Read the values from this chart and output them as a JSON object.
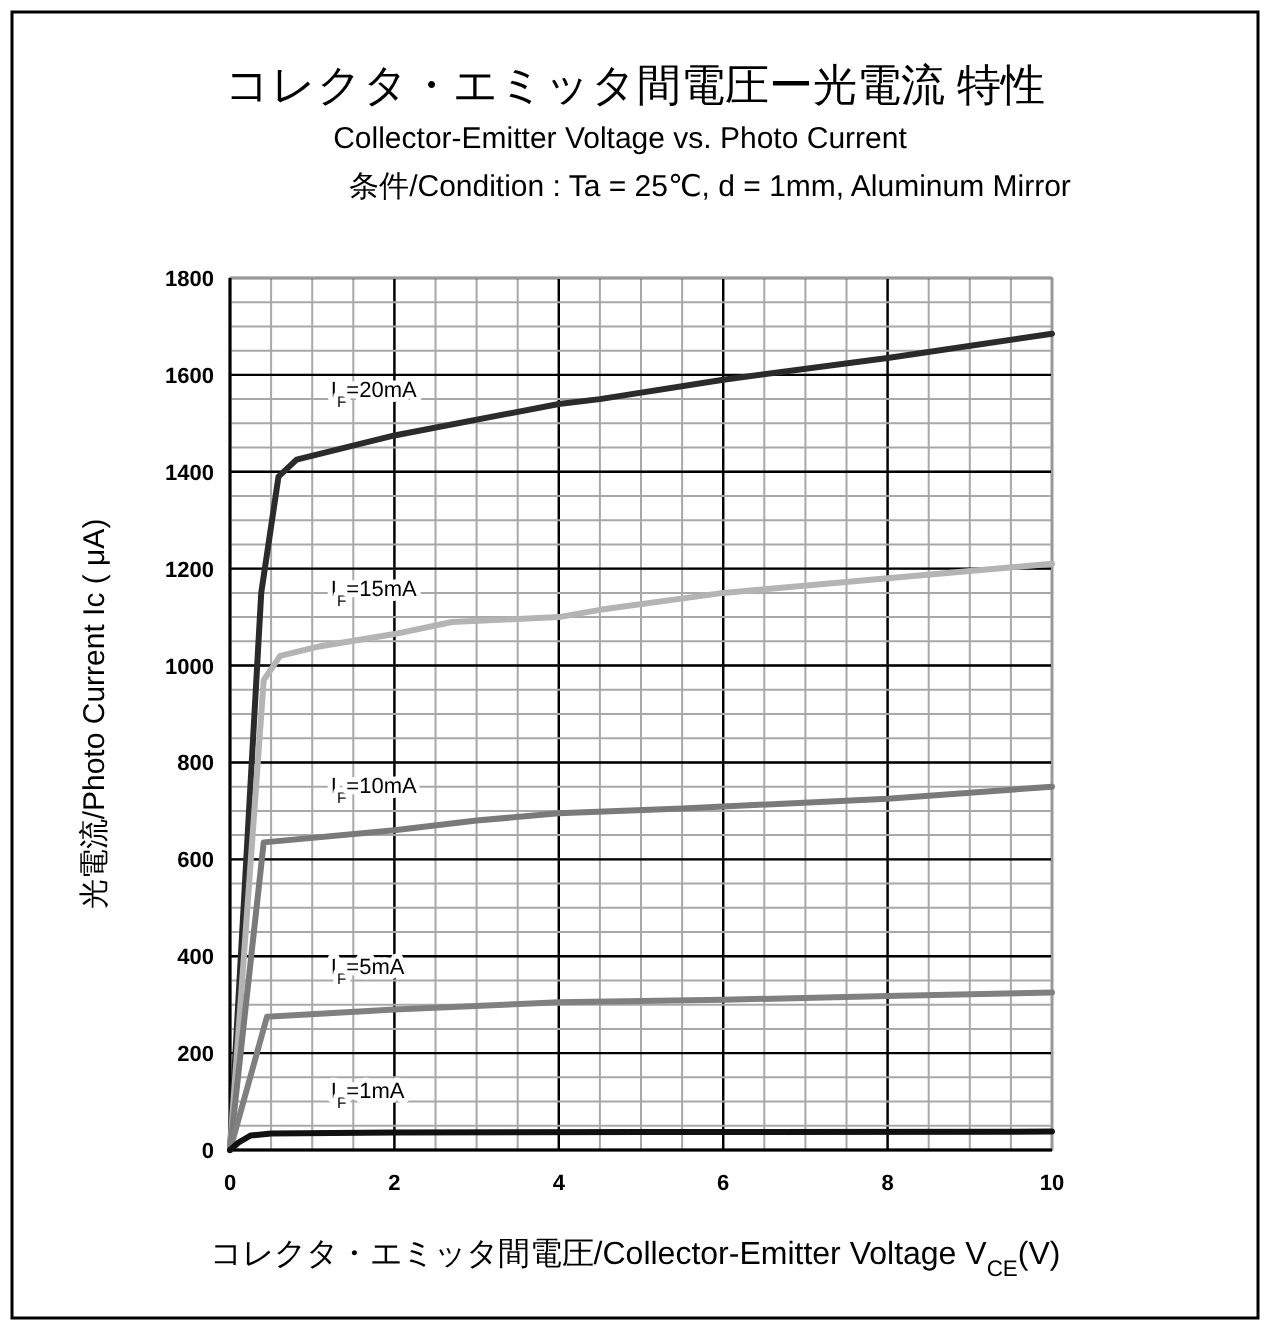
{
  "chart_data": {
    "type": "line",
    "title": "コレクタ・エミッタ間電圧ー光電流  特性",
    "subtitle": "Collector-Emitter Voltage vs. Photo Current",
    "annotations": [
      "条件/Condition : Ta = 25℃, d = 1mm, Aluminum Mirror"
    ],
    "xlabel": "コレクタ・エミッタ間電圧/Collector-Emitter Voltage V$_{CE}$(V)",
    "ylabel": "光電流/Photo Current Ic ( μA)",
    "xlim": [
      0,
      10
    ],
    "xticks": [
      0,
      2,
      4,
      6,
      8,
      10
    ],
    "ylim": [
      0,
      1800
    ],
    "yticks": [
      0,
      200,
      400,
      600,
      800,
      1000,
      1200,
      1400,
      1600,
      1800
    ],
    "grid": true,
    "marker": "none",
    "line_style": "solid",
    "legend": false,
    "series": [
      {
        "name": "I$_{F}$=20mA",
        "color": "#2b2b2b",
        "x": [
          0,
          0.38,
          0.59,
          0.81,
          2,
          4,
          4.5,
          6,
          8,
          10
        ],
        "values": [
          0,
          1150,
          1390,
          1425,
          1475,
          1540,
          1550,
          1590,
          1635,
          1685
        ]
      },
      {
        "name": "I$_{F}$=15mA",
        "color": "#b4b4b4",
        "x": [
          0,
          0.41,
          0.61,
          1.1,
          2,
          2.7,
          4,
          4.5,
          6,
          8,
          10
        ],
        "values": [
          0,
          970,
          1020,
          1040,
          1065,
          1090,
          1100,
          1115,
          1150,
          1180,
          1210
        ]
      },
      {
        "name": "I$_{F}$=10mA",
        "color": "#7a7a7a",
        "x": [
          0,
          0.41,
          2,
          3,
          4,
          5.5,
          8,
          10
        ],
        "values": [
          0,
          635,
          660,
          680,
          695,
          705,
          725,
          750
        ]
      },
      {
        "name": "I$_{F}$=5mA",
        "color": "#808080",
        "x": [
          0,
          0.45,
          2,
          4,
          6,
          8,
          10
        ],
        "values": [
          0,
          275,
          290,
          305,
          310,
          318,
          325
        ]
      },
      {
        "name": "I$_{F}$=1mA",
        "color": "#111111",
        "x": [
          0,
          0.1,
          0.25,
          0.5,
          2,
          5,
          10
        ],
        "values": [
          0,
          15,
          30,
          34,
          36,
          37,
          38
        ]
      }
    ]
  }
}
